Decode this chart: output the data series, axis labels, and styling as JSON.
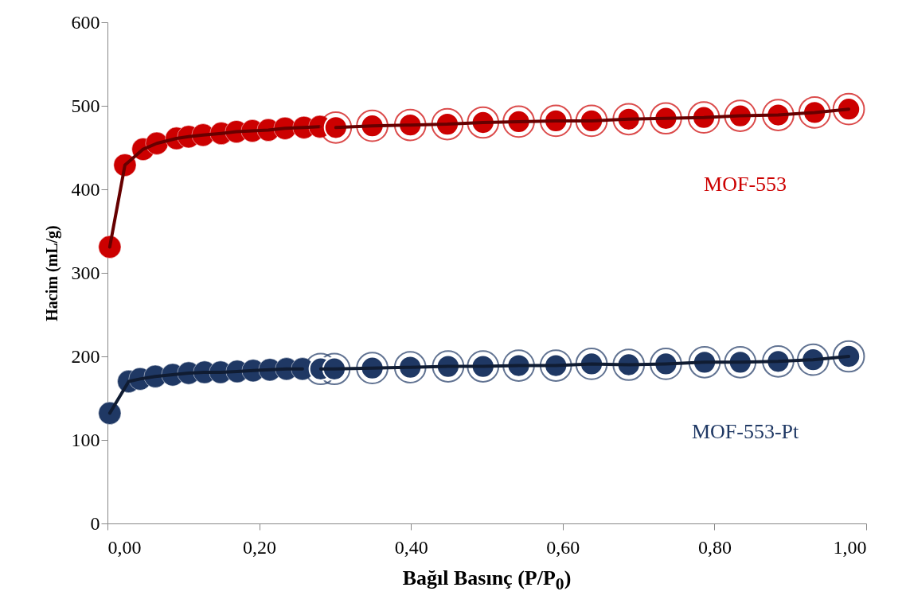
{
  "chart_data": {
    "type": "line",
    "xlabel": "Bağıl Basınç (P/P$_{0}$)",
    "ylabel": "Hacim (mL/g)",
    "xlim": [
      0,
      1
    ],
    "ylim": [
      0,
      600
    ],
    "xticks": [
      {
        "value": 0,
        "label": "0,00"
      },
      {
        "value": 0.2,
        "label": "0,20"
      },
      {
        "value": 0.4,
        "label": "0,40"
      },
      {
        "value": 0.6,
        "label": "0,60"
      },
      {
        "value": 0.8,
        "label": "0,80"
      },
      {
        "value": 1,
        "label": "1,00"
      }
    ],
    "yticks": [
      0,
      100,
      200,
      300,
      400,
      500,
      600
    ],
    "grid": false,
    "marker": "circle",
    "line_style": "solid",
    "series": [
      {
        "color": "#cc0000",
        "x": [
          0.003,
          0.023,
          0.047,
          0.065,
          0.091,
          0.107,
          0.126,
          0.15,
          0.17,
          0.191,
          0.212,
          0.234,
          0.259,
          0.28
        ],
        "values": [
          331,
          429,
          448,
          455,
          461,
          463,
          465,
          467,
          469,
          470,
          471,
          473,
          474,
          475
        ]
      },
      {
        "name": "MOF-553",
        "color": "#cc0000",
        "x": [
          0.301,
          0.349,
          0.399,
          0.448,
          0.495,
          0.542,
          0.591,
          0.638,
          0.687,
          0.736,
          0.786,
          0.834,
          0.884,
          0.932,
          0.977
        ],
        "values": [
          474,
          476,
          477,
          478,
          480,
          481,
          482,
          482,
          484,
          485,
          486,
          488,
          489,
          492,
          496
        ]
      },
      {
        "color": "#1f3864",
        "x": [
          0.003,
          0.028,
          0.043,
          0.063,
          0.086,
          0.107,
          0.128,
          0.149,
          0.171,
          0.192,
          0.214,
          0.236,
          0.257
        ],
        "values": [
          132,
          170,
          173,
          176,
          178,
          180,
          181,
          181,
          182,
          183,
          184,
          185,
          185
        ]
      },
      {
        "name": "MOF-553-Pt",
        "color": "#1f3864",
        "x": [
          0.281,
          0.299,
          0.349,
          0.399,
          0.449,
          0.495,
          0.542,
          0.591,
          0.638,
          0.687,
          0.736,
          0.787,
          0.834,
          0.884,
          0.93,
          0.977
        ],
        "values": [
          185,
          185,
          186,
          187,
          188,
          188,
          189,
          189,
          191,
          190,
          191,
          193,
          193,
          194,
          196,
          200
        ]
      }
    ]
  }
}
